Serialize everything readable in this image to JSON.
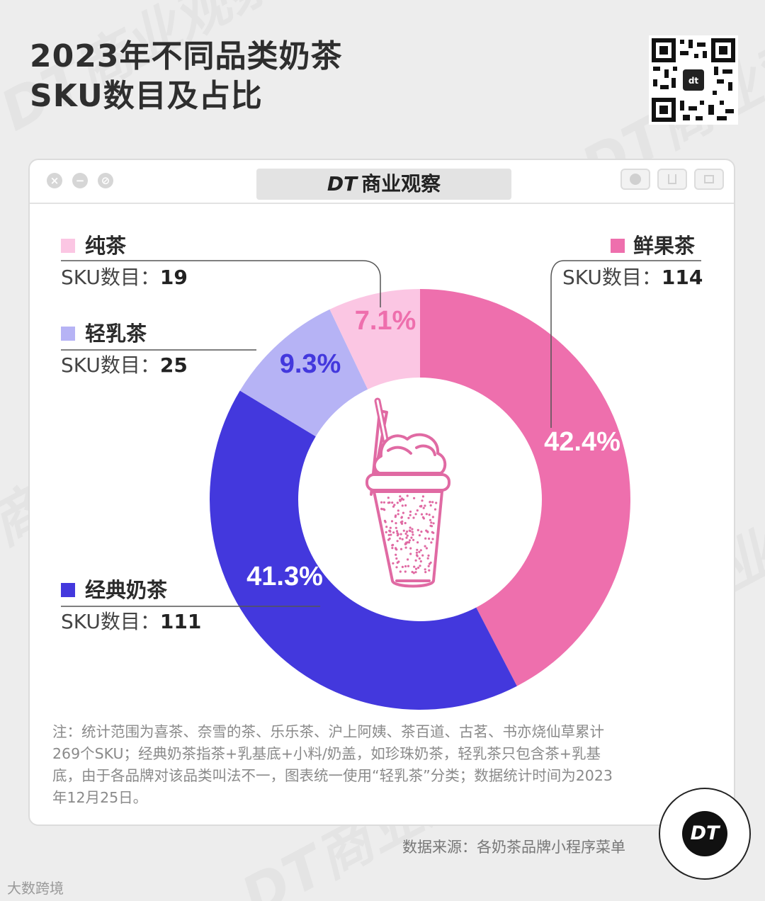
{
  "title_line1": "2023年不同品类奶茶",
  "title_line2": "SKU数目及占比",
  "brand": {
    "logo": "DT",
    "name": "商业观察"
  },
  "sku_prefix": "SKU数目：",
  "colors": {
    "鲜果茶": "#ee6fad",
    "经典奶茶": "#4338dd",
    "轻乳茶": "#b6b3f5",
    "纯茶": "#fbc6e3"
  },
  "chart_data": {
    "type": "pie",
    "donut": true,
    "title": "2023年不同品类奶茶SKU数目及占比",
    "slices": [
      {
        "name": "鲜果茶",
        "value": 114,
        "percent_label": "42.4%"
      },
      {
        "name": "经典奶茶",
        "value": 111,
        "percent_label": "41.3%"
      },
      {
        "name": "轻乳茶",
        "value": 25,
        "percent_label": "9.3%"
      },
      {
        "name": "纯茶",
        "value": 19,
        "percent_label": "7.1%"
      }
    ],
    "total": 269
  },
  "note": "注：统计范围为喜茶、奈雪的茶、乐乐茶、沪上阿姨、茶百道、古茗、书亦烧仙草累计269个SKU；经典奶茶指茶+乳基底+小料/奶盖，如珍珠奶茶，轻乳茶只包含茶+乳基底，由于各品牌对该品类叫法不一，图表统一使用“轻乳茶”分类；数据统计时间为2023年12月25日。",
  "source": "数据来源：各奶茶品牌小程序菜单",
  "footer_mark": "大数跨境",
  "window_buttons": [
    "×",
    "−",
    "⊘"
  ]
}
